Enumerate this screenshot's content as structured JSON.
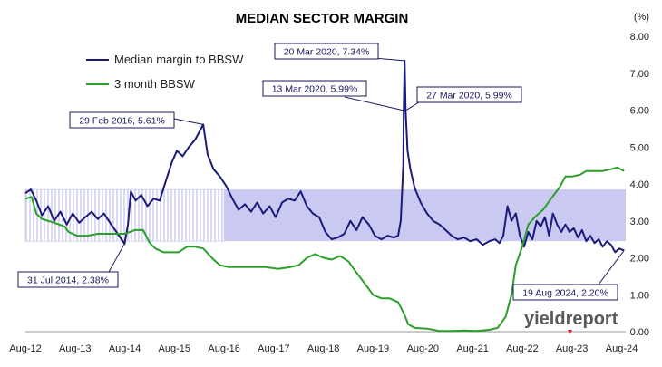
{
  "chart_data": {
    "type": "line",
    "title": "MEDIAN SECTOR MARGIN",
    "y_unit_label": "(%)",
    "ylim": [
      0,
      8
    ],
    "y_ticks": [
      "0.00",
      "1.00",
      "2.00",
      "3.00",
      "4.00",
      "5.00",
      "6.00",
      "7.00",
      "8.00"
    ],
    "x_ticks": [
      "Aug-12",
      "Aug-13",
      "Aug-14",
      "Aug-15",
      "Aug-16",
      "Aug-17",
      "Aug-18",
      "Aug-19",
      "Aug-20",
      "Aug-21",
      "Aug-22",
      "Aug-23",
      "Aug-24"
    ],
    "x_range": [
      "2012-08-01",
      "2024-08-31"
    ],
    "grid": false,
    "legend_position": "top-left",
    "range_band": {
      "y_low": 2.45,
      "y_high": 3.85,
      "hatched_until": "2016-08-01",
      "color": "#c9c9f2"
    },
    "series": [
      {
        "name": "Median margin to BBSW",
        "color": "#1a1a7a",
        "points": [
          [
            "2012-08-01",
            3.75
          ],
          [
            "2012-09-10",
            3.85
          ],
          [
            "2012-10-20",
            3.55
          ],
          [
            "2012-12-01",
            3.15
          ],
          [
            "2013-01-15",
            3.4
          ],
          [
            "2013-03-01",
            3.0
          ],
          [
            "2013-04-15",
            3.25
          ],
          [
            "2013-06-01",
            2.9
          ],
          [
            "2013-07-15",
            3.2
          ],
          [
            "2013-09-01",
            2.95
          ],
          [
            "2013-10-15",
            3.1
          ],
          [
            "2013-12-01",
            3.25
          ],
          [
            "2014-01-15",
            3.05
          ],
          [
            "2014-03-01",
            3.2
          ],
          [
            "2014-04-15",
            2.95
          ],
          [
            "2014-06-01",
            2.7
          ],
          [
            "2014-07-31",
            2.38
          ],
          [
            "2014-08-25",
            2.9
          ],
          [
            "2014-09-15",
            3.8
          ],
          [
            "2014-10-20",
            3.55
          ],
          [
            "2014-12-01",
            3.7
          ],
          [
            "2015-01-15",
            3.4
          ],
          [
            "2015-03-01",
            3.6
          ],
          [
            "2015-04-15",
            3.55
          ],
          [
            "2015-06-01",
            4.1
          ],
          [
            "2015-07-15",
            4.6
          ],
          [
            "2015-08-20",
            4.9
          ],
          [
            "2015-10-01",
            4.75
          ],
          [
            "2015-11-15",
            5.0
          ],
          [
            "2016-01-01",
            5.2
          ],
          [
            "2016-02-29",
            5.61
          ],
          [
            "2016-04-01",
            4.8
          ],
          [
            "2016-05-15",
            4.4
          ],
          [
            "2016-07-01",
            4.2
          ],
          [
            "2016-08-15",
            3.95
          ],
          [
            "2016-10-01",
            3.6
          ],
          [
            "2016-11-15",
            3.3
          ],
          [
            "2017-01-01",
            3.45
          ],
          [
            "2017-02-15",
            3.25
          ],
          [
            "2017-04-01",
            3.5
          ],
          [
            "2017-05-15",
            3.2
          ],
          [
            "2017-07-01",
            3.4
          ],
          [
            "2017-08-15",
            3.1
          ],
          [
            "2017-10-01",
            3.5
          ],
          [
            "2017-11-15",
            3.6
          ],
          [
            "2018-01-01",
            3.55
          ],
          [
            "2018-02-15",
            3.8
          ],
          [
            "2018-04-01",
            3.4
          ],
          [
            "2018-05-15",
            3.2
          ],
          [
            "2018-07-01",
            3.1
          ],
          [
            "2018-08-15",
            2.7
          ],
          [
            "2018-10-01",
            2.5
          ],
          [
            "2018-11-15",
            2.55
          ],
          [
            "2019-01-01",
            2.65
          ],
          [
            "2019-02-15",
            3.0
          ],
          [
            "2019-04-01",
            2.75
          ],
          [
            "2019-05-15",
            3.1
          ],
          [
            "2019-07-01",
            2.9
          ],
          [
            "2019-08-15",
            2.6
          ],
          [
            "2019-10-01",
            2.5
          ],
          [
            "2019-11-15",
            2.6
          ],
          [
            "2020-01-01",
            2.55
          ],
          [
            "2020-02-01",
            2.6
          ],
          [
            "2020-02-20",
            3.0
          ],
          [
            "2020-03-10",
            4.5
          ],
          [
            "2020-03-13",
            5.99
          ],
          [
            "2020-03-20",
            7.34
          ],
          [
            "2020-03-27",
            5.99
          ],
          [
            "2020-04-10",
            4.9
          ],
          [
            "2020-05-01",
            4.4
          ],
          [
            "2020-06-01",
            3.9
          ],
          [
            "2020-07-15",
            3.5
          ],
          [
            "2020-09-01",
            3.2
          ],
          [
            "2020-10-15",
            3.0
          ],
          [
            "2020-12-01",
            2.9
          ],
          [
            "2021-01-15",
            2.75
          ],
          [
            "2021-03-01",
            2.6
          ],
          [
            "2021-04-15",
            2.5
          ],
          [
            "2021-06-01",
            2.55
          ],
          [
            "2021-07-15",
            2.45
          ],
          [
            "2021-09-01",
            2.5
          ],
          [
            "2021-10-15",
            2.35
          ],
          [
            "2021-12-01",
            2.45
          ],
          [
            "2022-01-15",
            2.5
          ],
          [
            "2022-02-15",
            2.4
          ],
          [
            "2022-03-15",
            2.6
          ],
          [
            "2022-04-15",
            3.4
          ],
          [
            "2022-05-15",
            3.0
          ],
          [
            "2022-06-15",
            3.2
          ],
          [
            "2022-07-15",
            2.6
          ],
          [
            "2022-08-15",
            2.3
          ],
          [
            "2022-09-15",
            2.7
          ],
          [
            "2022-10-15",
            2.5
          ],
          [
            "2022-11-15",
            3.0
          ],
          [
            "2022-12-15",
            2.85
          ],
          [
            "2023-01-15",
            3.1
          ],
          [
            "2023-02-15",
            2.6
          ],
          [
            "2023-03-15",
            3.2
          ],
          [
            "2023-04-15",
            2.9
          ],
          [
            "2023-05-15",
            2.7
          ],
          [
            "2023-06-15",
            2.9
          ],
          [
            "2023-07-15",
            2.7
          ],
          [
            "2023-08-15",
            2.8
          ],
          [
            "2023-09-15",
            2.55
          ],
          [
            "2023-10-15",
            2.75
          ],
          [
            "2023-11-15",
            2.45
          ],
          [
            "2023-12-15",
            2.6
          ],
          [
            "2024-01-15",
            2.4
          ],
          [
            "2024-02-15",
            2.5
          ],
          [
            "2024-03-15",
            2.3
          ],
          [
            "2024-04-15",
            2.45
          ],
          [
            "2024-05-15",
            2.35
          ],
          [
            "2024-06-15",
            2.15
          ],
          [
            "2024-07-15",
            2.25
          ],
          [
            "2024-08-19",
            2.2
          ]
        ]
      },
      {
        "name": "3 month BBSW",
        "color": "#2aa02a",
        "points": [
          [
            "2012-08-01",
            3.6
          ],
          [
            "2012-09-15",
            3.65
          ],
          [
            "2012-10-20",
            3.2
          ],
          [
            "2012-12-01",
            3.05
          ],
          [
            "2013-01-15",
            3.0
          ],
          [
            "2013-03-01",
            2.95
          ],
          [
            "2013-05-15",
            2.85
          ],
          [
            "2013-06-15",
            2.7
          ],
          [
            "2013-08-15",
            2.6
          ],
          [
            "2013-11-01",
            2.6
          ],
          [
            "2014-01-15",
            2.65
          ],
          [
            "2014-04-01",
            2.65
          ],
          [
            "2014-06-01",
            2.65
          ],
          [
            "2014-08-01",
            2.65
          ],
          [
            "2014-10-15",
            2.75
          ],
          [
            "2014-12-15",
            2.75
          ],
          [
            "2015-02-01",
            2.4
          ],
          [
            "2015-03-15",
            2.25
          ],
          [
            "2015-05-15",
            2.15
          ],
          [
            "2015-07-01",
            2.15
          ],
          [
            "2015-09-01",
            2.15
          ],
          [
            "2015-11-01",
            2.3
          ],
          [
            "2016-01-01",
            2.3
          ],
          [
            "2016-03-01",
            2.25
          ],
          [
            "2016-05-15",
            1.95
          ],
          [
            "2016-07-01",
            1.8
          ],
          [
            "2016-09-01",
            1.75
          ],
          [
            "2016-12-01",
            1.75
          ],
          [
            "2017-03-01",
            1.75
          ],
          [
            "2017-06-01",
            1.75
          ],
          [
            "2017-09-01",
            1.7
          ],
          [
            "2017-12-01",
            1.75
          ],
          [
            "2018-02-01",
            1.8
          ],
          [
            "2018-04-01",
            2.0
          ],
          [
            "2018-06-01",
            2.1
          ],
          [
            "2018-08-01",
            2.0
          ],
          [
            "2018-10-01",
            1.95
          ],
          [
            "2018-12-01",
            2.05
          ],
          [
            "2019-02-01",
            1.9
          ],
          [
            "2019-04-01",
            1.6
          ],
          [
            "2019-06-01",
            1.3
          ],
          [
            "2019-08-01",
            1.0
          ],
          [
            "2019-10-01",
            0.9
          ],
          [
            "2019-12-01",
            0.9
          ],
          [
            "2020-02-01",
            0.8
          ],
          [
            "2020-03-20",
            0.45
          ],
          [
            "2020-04-15",
            0.2
          ],
          [
            "2020-06-01",
            0.1
          ],
          [
            "2020-09-01",
            0.08
          ],
          [
            "2020-12-01",
            0.02
          ],
          [
            "2021-03-01",
            0.02
          ],
          [
            "2021-06-01",
            0.03
          ],
          [
            "2021-09-01",
            0.02
          ],
          [
            "2021-12-01",
            0.05
          ],
          [
            "2022-02-01",
            0.1
          ],
          [
            "2022-04-01",
            0.4
          ],
          [
            "2022-05-15",
            1.0
          ],
          [
            "2022-06-15",
            1.8
          ],
          [
            "2022-08-01",
            2.3
          ],
          [
            "2022-09-15",
            2.9
          ],
          [
            "2022-11-01",
            3.1
          ],
          [
            "2023-01-01",
            3.3
          ],
          [
            "2023-03-01",
            3.6
          ],
          [
            "2023-05-01",
            3.9
          ],
          [
            "2023-06-15",
            4.2
          ],
          [
            "2023-08-01",
            4.2
          ],
          [
            "2023-10-01",
            4.25
          ],
          [
            "2023-11-15",
            4.35
          ],
          [
            "2024-01-15",
            4.35
          ],
          [
            "2024-03-15",
            4.35
          ],
          [
            "2024-05-15",
            4.4
          ],
          [
            "2024-07-01",
            4.45
          ],
          [
            "2024-08-19",
            4.35
          ]
        ]
      }
    ],
    "annotations": [
      {
        "date": "2014-07-31",
        "value": 2.38,
        "label": "31 Jul 2014,  2.38%",
        "series": 0
      },
      {
        "date": "2016-02-29",
        "value": 5.61,
        "label": "29 Feb 2016,  5.61%",
        "series": 0
      },
      {
        "date": "2020-03-13",
        "value": 5.99,
        "label": "13 Mar 2020,  5.99%",
        "series": 0
      },
      {
        "date": "2020-03-20",
        "value": 7.34,
        "label": "20 Mar 2020,  7.34%",
        "series": 0
      },
      {
        "date": "2020-03-27",
        "value": 5.99,
        "label": "27 Mar 2020,  5.99%",
        "series": 0
      },
      {
        "date": "2024-08-19",
        "value": 2.2,
        "label": "19 Aug 2024,  2.20%",
        "series": 0
      }
    ]
  },
  "brand": {
    "text": "yieldreport",
    "accent_color": "#d62020"
  }
}
